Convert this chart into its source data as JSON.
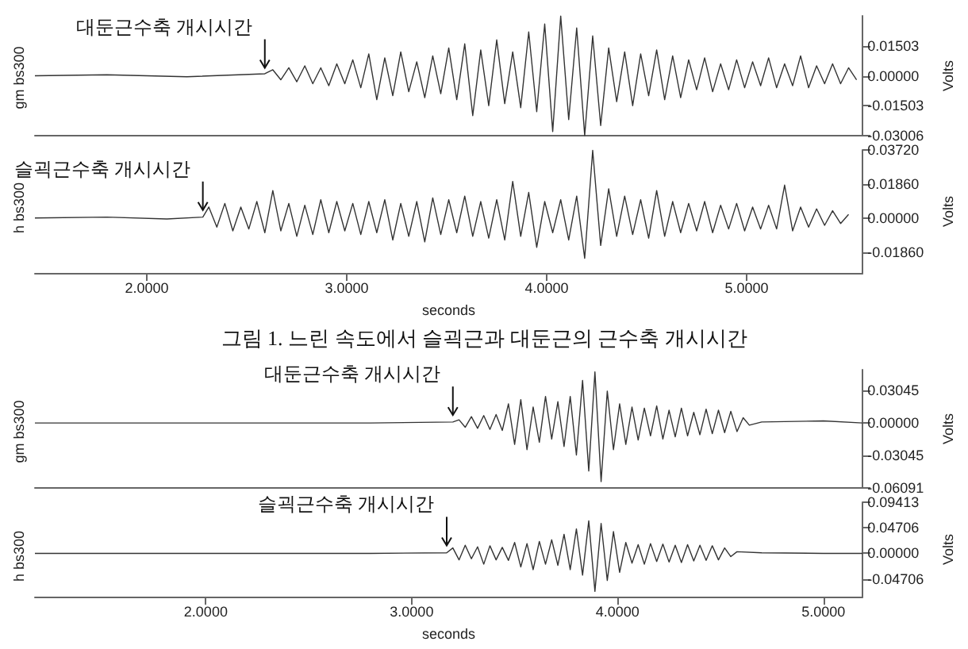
{
  "chart_data": [
    {
      "type": "line",
      "ylabel": "Volts",
      "xlim": [
        1.44,
        5.58
      ],
      "ylim": [
        -0.03006,
        0.03006
      ],
      "yticks": [
        0.01503,
        {
          "value": 0,
          "label": "0.00000"
        },
        -0.01503,
        -0.03006
      ],
      "tick_labels": "y",
      "marker": "none",
      "grid": false,
      "annotations": [
        {
          "text": "대둔근수축 개시시간",
          "x": 2.59,
          "y": 0
        }
      ],
      "series": [
        {
          "name": "gm bs300",
          "color": "#333333",
          "x": [
            1.44,
            1.8,
            2.2,
            2.59,
            2.63,
            2.67,
            2.71,
            2.75,
            2.79,
            2.83,
            2.87,
            2.91,
            2.95,
            2.99,
            3.03,
            3.07,
            3.11,
            3.15,
            3.19,
            3.23,
            3.27,
            3.31,
            3.35,
            3.39,
            3.43,
            3.47,
            3.51,
            3.55,
            3.59,
            3.63,
            3.67,
            3.71,
            3.75,
            3.79,
            3.83,
            3.87,
            3.91,
            3.95,
            3.99,
            4.03,
            4.07,
            4.11,
            4.15,
            4.19,
            4.23,
            4.27,
            4.31,
            4.35,
            4.39,
            4.43,
            4.47,
            4.51,
            4.55,
            4.59,
            4.63,
            4.67,
            4.71,
            4.75,
            4.79,
            4.83,
            4.87,
            4.91,
            4.95,
            4.99,
            5.03,
            5.07,
            5.11,
            5.15,
            5.19,
            5.23,
            5.27,
            5.31,
            5.35,
            5.39,
            5.43,
            5.47,
            5.51,
            5.55
          ],
          "values": [
            0,
            0.0005,
            -0.0005,
            0.001,
            0.003,
            -0.002,
            0.004,
            -0.003,
            0.005,
            -0.004,
            0.004,
            -0.005,
            0.006,
            -0.004,
            0.008,
            -0.006,
            0.011,
            -0.012,
            0.009,
            -0.01,
            0.012,
            -0.008,
            0.007,
            -0.011,
            0.01,
            -0.009,
            0.014,
            -0.012,
            0.016,
            -0.02,
            0.013,
            -0.015,
            0.018,
            -0.014,
            0.012,
            -0.016,
            0.022,
            -0.018,
            0.026,
            -0.028,
            0.03,
            -0.022,
            0.024,
            -0.03,
            0.02,
            -0.025,
            0.014,
            -0.013,
            0.012,
            -0.015,
            0.011,
            -0.01,
            0.013,
            -0.012,
            0.01,
            -0.011,
            0.008,
            -0.007,
            0.009,
            -0.008,
            0.006,
            -0.007,
            0.008,
            -0.006,
            0.007,
            -0.005,
            0.009,
            -0.006,
            0.006,
            -0.005,
            0.01,
            -0.006,
            0.005,
            -0.004,
            0.006,
            -0.004,
            0.004,
            -0.002
          ]
        }
      ]
    },
    {
      "type": "line",
      "xlabel": "seconds",
      "ylabel": "Volts",
      "xlim": [
        1.44,
        5.58
      ],
      "xticks": [
        {
          "value": 2,
          "label": "2.0000"
        },
        {
          "value": 3,
          "label": "3.0000"
        },
        {
          "value": 4,
          "label": "4.0000"
        },
        {
          "value": 5,
          "label": "5.0000"
        }
      ],
      "ylim": [
        -0.03,
        0.0372
      ],
      "yticks": [
        {
          "value": 0.0372,
          "label": "0.03720"
        },
        {
          "value": 0.0186,
          "label": "0.01860"
        },
        {
          "value": 0,
          "label": "0.00000"
        },
        {
          "value": -0.0186,
          "label": "-0.01860"
        }
      ],
      "marker": "none",
      "grid": false,
      "annotations": [
        {
          "text": "슬괵근수축 개시시간",
          "x": 2.28,
          "y": 0
        },
        "그림 1. 느린 속도에서 슬괵근과 대둔근의 근수축 개시시간"
      ],
      "series": [
        {
          "name": "h bs300",
          "color": "#333333",
          "x": [
            1.44,
            1.8,
            2.1,
            2.28,
            2.31,
            2.35,
            2.39,
            2.43,
            2.47,
            2.51,
            2.55,
            2.59,
            2.63,
            2.67,
            2.71,
            2.75,
            2.79,
            2.83,
            2.87,
            2.91,
            2.95,
            2.99,
            3.03,
            3.07,
            3.11,
            3.15,
            3.19,
            3.23,
            3.27,
            3.31,
            3.35,
            3.39,
            3.43,
            3.47,
            3.51,
            3.55,
            3.59,
            3.63,
            3.67,
            3.71,
            3.75,
            3.79,
            3.83,
            3.87,
            3.91,
            3.95,
            3.99,
            4.03,
            4.07,
            4.11,
            4.15,
            4.19,
            4.23,
            4.27,
            4.31,
            4.35,
            4.39,
            4.43,
            4.47,
            4.51,
            4.55,
            4.59,
            4.63,
            4.67,
            4.71,
            4.75,
            4.79,
            4.83,
            4.87,
            4.91,
            4.95,
            4.99,
            5.03,
            5.07,
            5.11,
            5.15,
            5.19,
            5.23,
            5.27,
            5.31,
            5.35,
            5.39,
            5.43,
            5.47,
            5.51
          ],
          "values": [
            0,
            0.0005,
            -0.0005,
            0.0005,
            0.006,
            -0.005,
            0.008,
            -0.007,
            0.006,
            -0.006,
            0.009,
            -0.008,
            0.015,
            -0.007,
            0.008,
            -0.01,
            0.007,
            -0.009,
            0.01,
            -0.008,
            0.009,
            -0.007,
            0.008,
            -0.009,
            0.009,
            -0.008,
            0.01,
            -0.012,
            0.008,
            -0.01,
            0.009,
            -0.013,
            0.011,
            -0.009,
            0.01,
            -0.008,
            0.012,
            -0.01,
            0.009,
            -0.011,
            0.01,
            -0.012,
            0.02,
            -0.01,
            0.014,
            -0.016,
            0.009,
            -0.008,
            0.01,
            -0.012,
            0.012,
            -0.022,
            0.037,
            -0.015,
            0.016,
            -0.01,
            0.012,
            -0.009,
            0.01,
            -0.011,
            0.015,
            -0.01,
            0.009,
            -0.008,
            0.008,
            -0.007,
            0.009,
            -0.008,
            0.007,
            -0.006,
            0.008,
            -0.007,
            0.006,
            -0.006,
            0.007,
            -0.006,
            0.018,
            -0.007,
            0.006,
            -0.005,
            0.005,
            -0.004,
            0.004,
            -0.003,
            0.002
          ]
        }
      ]
    },
    {
      "type": "line",
      "ylabel": "Volts",
      "xlim": [
        1.17,
        5.19
      ],
      "ylim": [
        -0.06091,
        0.05
      ],
      "yticks": [
        0.03045,
        {
          "value": 0,
          "label": "0.00000"
        },
        -0.03045,
        -0.06091
      ],
      "tick_labels": "y",
      "marker": "none",
      "grid": false,
      "annotations": [
        {
          "text": "대둔근수축 개시시간",
          "x": 3.2,
          "y": 0
        }
      ],
      "series": [
        {
          "name": "gm bs300",
          "color": "#333333",
          "x": [
            1.17,
            2,
            2.8,
            3.2,
            3.23,
            3.26,
            3.29,
            3.32,
            3.35,
            3.38,
            3.41,
            3.44,
            3.47,
            3.5,
            3.53,
            3.56,
            3.59,
            3.62,
            3.65,
            3.68,
            3.71,
            3.74,
            3.77,
            3.8,
            3.83,
            3.86,
            3.89,
            3.92,
            3.95,
            3.98,
            4.01,
            4.04,
            4.07,
            4.1,
            4.13,
            4.16,
            4.19,
            4.22,
            4.25,
            4.28,
            4.31,
            4.34,
            4.37,
            4.4,
            4.43,
            4.46,
            4.49,
            4.52,
            4.55,
            4.58,
            4.61,
            4.64,
            4.7,
            5,
            5.19
          ],
          "values": [
            0,
            0,
            0,
            0.001,
            0.003,
            -0.004,
            0.006,
            -0.005,
            0.007,
            -0.006,
            0.008,
            -0.007,
            0.018,
            -0.02,
            0.022,
            -0.025,
            0.015,
            -0.018,
            0.025,
            -0.015,
            0.02,
            -0.022,
            0.025,
            -0.03,
            0.04,
            -0.045,
            0.048,
            -0.055,
            0.03,
            -0.025,
            0.018,
            -0.02,
            0.015,
            -0.016,
            0.014,
            -0.012,
            0.016,
            -0.015,
            0.012,
            -0.013,
            0.014,
            -0.012,
            0.01,
            -0.011,
            0.013,
            -0.01,
            0.012,
            -0.009,
            0.011,
            -0.008,
            0.005,
            -0.002,
            0.001,
            0.002,
            0
          ]
        }
      ]
    },
    {
      "type": "line",
      "xlabel": "seconds",
      "ylabel": "Volts",
      "xlim": [
        1.17,
        5.19
      ],
      "xticks": [
        {
          "value": 2,
          "label": "2.0000"
        },
        {
          "value": 3,
          "label": "3.0000"
        },
        {
          "value": 4,
          "label": "4.0000"
        },
        {
          "value": 5,
          "label": "5.0000"
        }
      ],
      "ylim": [
        -0.08,
        0.09413
      ],
      "yticks": [
        0.09413,
        0.04706,
        {
          "value": 0,
          "label": "0.00000"
        },
        -0.04706
      ],
      "marker": "none",
      "grid": false,
      "annotations": [
        {
          "text": "슬괵근수축 개시시간",
          "x": 3.17,
          "y": 0
        }
      ],
      "series": [
        {
          "name": "h bs300",
          "color": "#333333",
          "x": [
            1.17,
            2,
            2.8,
            3.17,
            3.2,
            3.23,
            3.26,
            3.29,
            3.32,
            3.35,
            3.38,
            3.41,
            3.44,
            3.47,
            3.5,
            3.53,
            3.56,
            3.59,
            3.62,
            3.65,
            3.68,
            3.71,
            3.74,
            3.77,
            3.8,
            3.83,
            3.86,
            3.89,
            3.92,
            3.95,
            3.98,
            4.01,
            4.04,
            4.07,
            4.1,
            4.13,
            4.16,
            4.19,
            4.22,
            4.25,
            4.28,
            4.31,
            4.34,
            4.37,
            4.4,
            4.43,
            4.46,
            4.49,
            4.52,
            4.55,
            4.58,
            4.7,
            5,
            5.19
          ],
          "values": [
            0,
            0,
            0,
            0.001,
            0.01,
            -0.012,
            0.015,
            -0.01,
            0.012,
            -0.02,
            0.014,
            -0.012,
            0.011,
            -0.013,
            0.02,
            -0.025,
            0.018,
            -0.03,
            0.022,
            -0.02,
            0.025,
            -0.022,
            0.035,
            -0.03,
            0.045,
            -0.04,
            0.06,
            -0.07,
            0.055,
            -0.05,
            0.04,
            -0.035,
            0.02,
            -0.018,
            0.016,
            -0.02,
            0.018,
            -0.015,
            0.017,
            -0.016,
            0.015,
            -0.017,
            0.016,
            -0.014,
            0.015,
            -0.013,
            0.014,
            -0.012,
            0.01,
            -0.006,
            0.003,
            0.001,
            0,
            0
          ]
        }
      ]
    }
  ]
}
